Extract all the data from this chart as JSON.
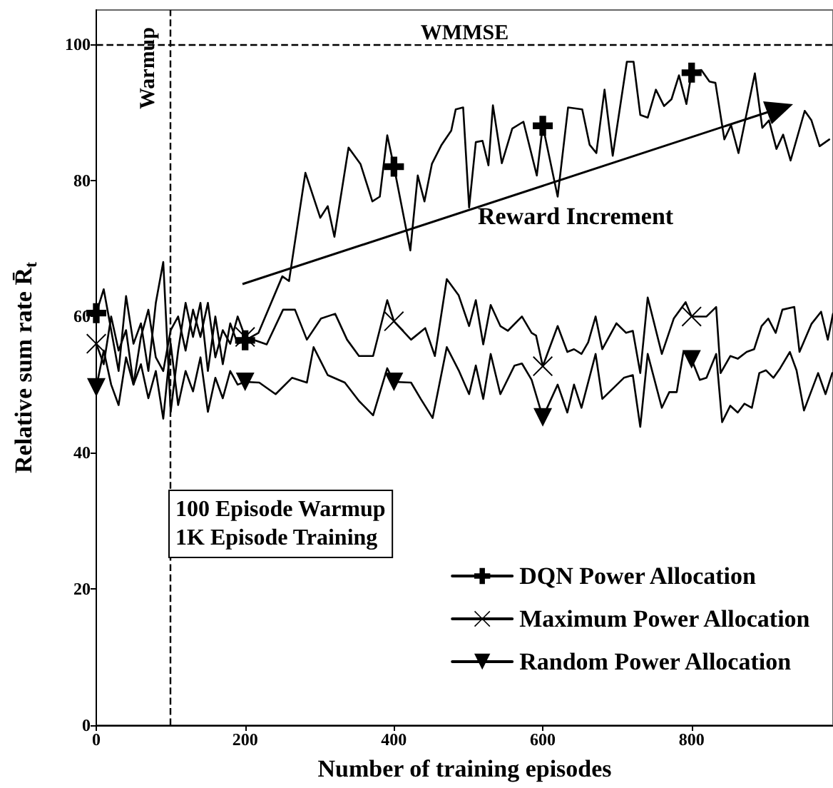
{
  "chart_data": {
    "type": "line",
    "xlabel": "Number of training episodes",
    "ylabel": "Relative sum rate R̄$_{t}$",
    "xlim": [
      0,
      990
    ],
    "ylim": [
      0,
      105
    ],
    "xticks": [
      0,
      200,
      400,
      600,
      800
    ],
    "yticks": [
      0,
      20,
      40,
      60,
      80,
      100
    ],
    "grid": false,
    "legend": "bottom right",
    "line_style": "solid",
    "ref_lines": [
      {
        "axis": "x",
        "value": 100,
        "label": "Warmup",
        "line_style": "dashed"
      },
      {
        "axis": "y",
        "value": 100,
        "label": "WMMSE",
        "line_style": "dashed"
      }
    ],
    "annotations": [
      "100 Episode Warmup\n1K Episode Training",
      "Reward Increment"
    ],
    "series": [
      {
        "name": "DQN Power Allocation",
        "color": "#000000",
        "x": [
          0,
          10,
          20,
          30,
          40,
          50,
          60,
          70,
          80,
          90,
          100,
          110,
          120,
          130,
          140,
          150,
          160,
          170,
          180,
          190,
          200,
          218,
          250,
          259,
          281,
          301,
          311,
          320,
          339,
          355,
          371,
          381,
          391,
          400,
          422,
          432,
          441,
          451,
          464,
          477,
          483,
          493,
          501,
          510,
          519,
          527,
          533,
          545,
          559,
          574,
          592,
          600,
          620,
          634,
          653,
          663,
          672,
          683,
          694,
          713,
          722,
          731,
          741,
          752,
          763,
          773,
          783,
          793,
          800,
          813,
          824,
          832,
          844,
          853,
          863,
          885,
          895,
          904,
          914,
          923,
          933,
          952,
          961,
          972,
          985
        ],
        "values": [
          60.5,
          64,
          58,
          52,
          63,
          56,
          59,
          52,
          62,
          68,
          46,
          55,
          62,
          57,
          62,
          52,
          60,
          53,
          59,
          56,
          56.5,
          57.6,
          65.9,
          65.2,
          81.1,
          74.5,
          76.2,
          71.7,
          84.8,
          82.4,
          76.9,
          77.6,
          86.6,
          82,
          69.7,
          80.7,
          76.9,
          82.4,
          85.2,
          87.3,
          90.4,
          90.7,
          76,
          85.6,
          85.8,
          82.2,
          91,
          82.5,
          87.6,
          88.6,
          80.7,
          88,
          77.6,
          90.7,
          90.4,
          85.2,
          84,
          93.3,
          83.6,
          97.4,
          97.4,
          89.6,
          89.2,
          93.3,
          90.9,
          91.9,
          95.4,
          91.2,
          95.8,
          96.2,
          94.5,
          94.3,
          86,
          88.1,
          84,
          95.7,
          87.7,
          88.8,
          84.6,
          86.7,
          82.9,
          90.2,
          88.8,
          85,
          86
        ]
      },
      {
        "type": "scatter",
        "color": "#000000",
        "marker": "cross",
        "x": [
          0,
          200,
          400,
          600,
          800
        ],
        "values": [
          60.5,
          56.5,
          82,
          88,
          95.8
        ]
      },
      {
        "name": "Maximum Power Allocation",
        "color": "#000000",
        "x": [
          0,
          10,
          20,
          30,
          40,
          50,
          60,
          70,
          80,
          90,
          100,
          110,
          120,
          130,
          140,
          150,
          160,
          170,
          180,
          190,
          200,
          229,
          251,
          267,
          283,
          302,
          321,
          337,
          353,
          372,
          391,
          400,
          423,
          442,
          455,
          471,
          487,
          501,
          510,
          520,
          530,
          543,
          553,
          572,
          585,
          591,
          600,
          620,
          633,
          642,
          652,
          661,
          671,
          680,
          699,
          712,
          721,
          731,
          741,
          760,
          776,
          792,
          800,
          820,
          833,
          839,
          852,
          862,
          874,
          884,
          894,
          903,
          913,
          922,
          938,
          945,
          961,
          974,
          983,
          990
        ],
        "values": [
          56,
          53,
          60,
          55,
          58,
          50,
          57,
          61,
          54,
          52,
          58,
          60,
          55,
          61,
          57,
          62,
          54,
          58,
          56,
          60,
          57,
          55.9,
          61,
          61,
          56.6,
          59.7,
          60.4,
          56.6,
          54.2,
          54.2,
          62.4,
          59.3,
          56.6,
          58.3,
          54.2,
          65.5,
          63.1,
          58.6,
          62.4,
          55.9,
          61.7,
          58.6,
          57.9,
          60,
          57.6,
          57.2,
          52.7,
          58.6,
          54.8,
          55.2,
          54.5,
          56.2,
          60,
          55.2,
          59,
          57.6,
          57.9,
          51.7,
          62.8,
          54.5,
          59.7,
          62.1,
          60,
          60,
          61.4,
          51.7,
          54.2,
          53.8,
          54.8,
          55.2,
          58.6,
          59.7,
          57.6,
          61,
          61.4,
          54.8,
          58.9,
          60.7,
          56.6,
          60.4
        ]
      },
      {
        "type": "scatter",
        "color": "#000000",
        "marker": "x",
        "x": [
          0,
          200,
          400,
          600,
          800
        ],
        "values": [
          56,
          57,
          59.3,
          52.7,
          60
        ]
      },
      {
        "name": "Random Power Allocation",
        "color": "#000000",
        "x": [
          0,
          10,
          20,
          30,
          40,
          50,
          60,
          70,
          80,
          90,
          100,
          110,
          120,
          130,
          140,
          150,
          160,
          170,
          180,
          190,
          200,
          219,
          241,
          263,
          283,
          292,
          311,
          334,
          353,
          372,
          391,
          400,
          423,
          436,
          452,
          471,
          487,
          501,
          510,
          520,
          530,
          543,
          562,
          572,
          585,
          600,
          620,
          633,
          642,
          652,
          671,
          680,
          709,
          721,
          731,
          741,
          760,
          770,
          780,
          789,
          800,
          811,
          820,
          833,
          841,
          852,
          862,
          871,
          881,
          891,
          900,
          910,
          919,
          932,
          941,
          951,
          970,
          980,
          989
        ],
        "values": [
          49.6,
          55,
          50,
          47,
          54,
          50,
          53,
          48,
          52,
          45,
          56,
          47,
          52,
          49,
          54,
          46,
          51,
          48,
          52,
          50,
          50.4,
          50.3,
          48.6,
          51,
          50.3,
          55.5,
          51.4,
          50.3,
          47.6,
          45.5,
          52.4,
          50.4,
          50.3,
          47.9,
          45.1,
          55.5,
          52.1,
          48.6,
          52.8,
          47.9,
          54.5,
          48.6,
          52.8,
          53.1,
          50.7,
          45.2,
          50,
          45.9,
          50,
          46.6,
          54.5,
          47.9,
          51,
          51.4,
          43.8,
          54.5,
          46.6,
          48.9,
          48.9,
          54.8,
          53.7,
          50.7,
          51,
          54.5,
          44.5,
          46.9,
          45.9,
          47.2,
          46.6,
          51.7,
          52.1,
          51,
          52.4,
          54.8,
          52.1,
          46.2,
          51.7,
          48.6,
          51.7
        ]
      },
      {
        "type": "scatter",
        "color": "#000000",
        "marker": "triangle",
        "x": [
          0,
          200,
          400,
          600,
          800
        ],
        "values": [
          49.6,
          50.4,
          50.4,
          45.2,
          53.7
        ]
      }
    ]
  }
}
